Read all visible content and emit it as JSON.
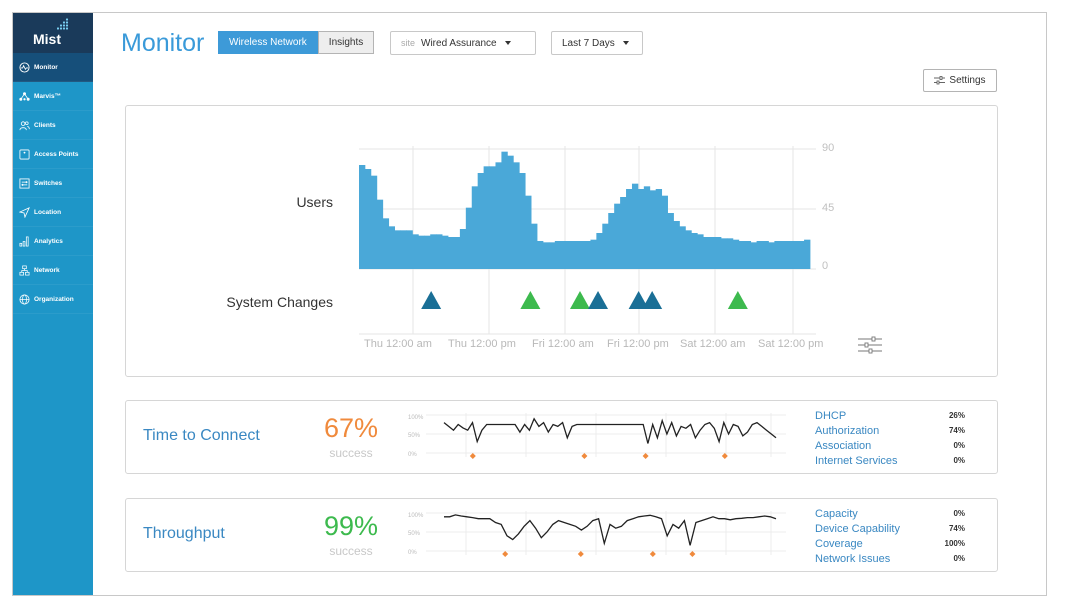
{
  "brand": {
    "logo_text": "Mist"
  },
  "sidebar": {
    "items": [
      {
        "label": "Monitor",
        "icon": "monitor-icon",
        "active": true
      },
      {
        "label": "Marvis™",
        "icon": "marvis-icon",
        "active": false
      },
      {
        "label": "Clients",
        "icon": "clients-icon",
        "active": false
      },
      {
        "label": "Access Points",
        "icon": "access-point-icon",
        "active": false
      },
      {
        "label": "Switches",
        "icon": "switch-icon",
        "active": false
      },
      {
        "label": "Location",
        "icon": "location-icon",
        "active": false
      },
      {
        "label": "Analytics",
        "icon": "analytics-icon",
        "active": false
      },
      {
        "label": "Network",
        "icon": "network-icon",
        "active": false
      },
      {
        "label": "Organization",
        "icon": "organization-icon",
        "active": false
      }
    ]
  },
  "header": {
    "title": "Monitor",
    "tabs": [
      {
        "label": "Wireless Network",
        "active": true
      },
      {
        "label": "Insights",
        "active": false
      }
    ],
    "site_label": "site",
    "site_value": "Wired Assurance",
    "range_value": "Last 7 Days",
    "settings_label": "Settings"
  },
  "timeline": {
    "users_label": "Users",
    "changes_label": "System Changes",
    "y_ticks": [
      "90",
      "45",
      "0"
    ],
    "x_ticks": [
      "Thu 12:00 am",
      "Thu 12:00 pm",
      "Fri 12:00 am",
      "Fri 12:00 pm",
      "Sat 12:00 am",
      "Sat 12:00 pm"
    ]
  },
  "chart_data": [
    {
      "type": "bar",
      "title": "Users",
      "ylim": [
        0,
        90
      ],
      "y_ticks": [
        0,
        45,
        90
      ],
      "x_ticks": [
        "Thu 12:00 am",
        "Thu 12:00 pm",
        "Fri 12:00 am",
        "Fri 12:00 pm",
        "Sat 12:00 am",
        "Sat 12:00 pm"
      ],
      "values": [
        78,
        75,
        70,
        52,
        38,
        32,
        29,
        29,
        29,
        26,
        25,
        25,
        26,
        26,
        25,
        24,
        24,
        30,
        46,
        62,
        72,
        77,
        77,
        80,
        88,
        85,
        80,
        72,
        55,
        34,
        21,
        20,
        20,
        21,
        21,
        21,
        21,
        21,
        21,
        22,
        27,
        34,
        42,
        49,
        54,
        60,
        64,
        60,
        62,
        59,
        60,
        55,
        42,
        36,
        32,
        29,
        27,
        26,
        24,
        24,
        24,
        23,
        23,
        22,
        21,
        21,
        20,
        21,
        21,
        20,
        21,
        21,
        21,
        21,
        21,
        22
      ],
      "system_changes": [
        {
          "x": 0.16,
          "status": "info"
        },
        {
          "x": 0.38,
          "status": "success"
        },
        {
          "x": 0.49,
          "status": "success"
        },
        {
          "x": 0.53,
          "status": "info"
        },
        {
          "x": 0.62,
          "status": "info"
        },
        {
          "x": 0.65,
          "status": "info"
        },
        {
          "x": 0.84,
          "status": "success"
        }
      ]
    },
    {
      "type": "line",
      "title": "Time to Connect",
      "ylim": [
        0,
        100
      ],
      "y_ticks": [
        "100%",
        "50%",
        "0%"
      ],
      "values": [
        80,
        70,
        60,
        75,
        66,
        60,
        80,
        30,
        60,
        75,
        75,
        75,
        75,
        75,
        75,
        75,
        55,
        75,
        60,
        90,
        70,
        80,
        55,
        75,
        70,
        80,
        40,
        70,
        75,
        75,
        75,
        75,
        75,
        75,
        75,
        75,
        75,
        75,
        75,
        75,
        75,
        75,
        75,
        25,
        75,
        40,
        85,
        50,
        80,
        45,
        70,
        65,
        75,
        40,
        60,
        75,
        80,
        65,
        30,
        80,
        50,
        75,
        70,
        45,
        55,
        75,
        80,
        70,
        60,
        50,
        40
      ],
      "failure_markers": [
        0.13,
        0.44,
        0.61,
        0.83
      ]
    },
    {
      "type": "line",
      "title": "Throughput",
      "ylim": [
        0,
        100
      ],
      "y_ticks": [
        "100%",
        "50%",
        "0%"
      ],
      "values": [
        90,
        90,
        95,
        92,
        90,
        88,
        85,
        85,
        85,
        75,
        70,
        40,
        30,
        45,
        65,
        80,
        60,
        35,
        50,
        70,
        80,
        75,
        70,
        65,
        55,
        65,
        80,
        85,
        20,
        70,
        60,
        65,
        80,
        85,
        90,
        92,
        94,
        90,
        85,
        40,
        70,
        60,
        80,
        15,
        75,
        80,
        85,
        90,
        85,
        85,
        82,
        85,
        86,
        88,
        88,
        90,
        92,
        90,
        85
      ],
      "failure_markers": [
        0.22,
        0.43,
        0.63,
        0.74
      ]
    }
  ],
  "sle_cards": [
    {
      "title": "Time to Connect",
      "value": "67%",
      "value_color": "#f08a3c",
      "sub": "success",
      "ticks": [
        "100%",
        "50%",
        "0%"
      ],
      "metrics": [
        {
          "name": "DHCP",
          "pct": "26%"
        },
        {
          "name": "Authorization",
          "pct": "74%"
        },
        {
          "name": "Association",
          "pct": "0%"
        },
        {
          "name": "Internet Services",
          "pct": "0%"
        }
      ]
    },
    {
      "title": "Throughput",
      "value": "99%",
      "value_color": "#3dba4e",
      "sub": "success",
      "ticks": [
        "100%",
        "50%",
        "0%"
      ],
      "metrics": [
        {
          "name": "Capacity",
          "pct": "0%"
        },
        {
          "name": "Device Capability",
          "pct": "74%"
        },
        {
          "name": "Coverage",
          "pct": "100%"
        },
        {
          "name": "Network Issues",
          "pct": "0%"
        }
      ]
    }
  ],
  "colors": {
    "sidebar": "#1e96c8",
    "sidebar_active": "#164f7a",
    "accent": "#3a9ad9",
    "bars": "#4aa8d8",
    "info_triangle": "#1a6f96",
    "success_triangle": "#3dba4e",
    "marker": "#f08a3c"
  }
}
